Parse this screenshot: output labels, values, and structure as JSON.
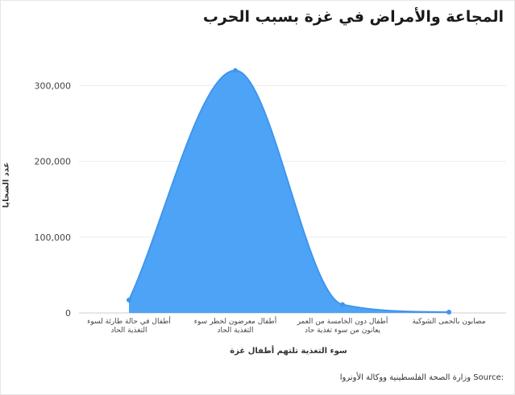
{
  "chart_data": {
    "type": "area",
    "title": "المجاعة والأمراض في غزة بسبب الحرب",
    "xlabel": "سوء التغذية تلتهم أطفال غزة",
    "ylabel": "عدد الضحايا",
    "categories": [
      "أطفال في حالة طارئة لسوء التغذية الحاد",
      "أطفال معرضون لخطر سوء التغذية الحاد",
      "أطفال دون الخامسة من العمر يعانون من سوء تغذية حاد",
      "مصابون بالحمى الشوكية"
    ],
    "values": [
      17000,
      320000,
      11000,
      1000
    ],
    "ylim": [
      0,
      360000
    ],
    "yticks": [
      0,
      100000,
      200000,
      300000
    ],
    "ytick_labels": [
      "0",
      "100,000",
      "200,000",
      "300,000"
    ],
    "grid": true,
    "smooth": true,
    "color": "#4da3f5",
    "line_color": "#3f95ee"
  },
  "source": {
    "prefix": "Source:",
    "text": "وزارة الصحة الفلسطينية ووكالة الأونروا"
  }
}
